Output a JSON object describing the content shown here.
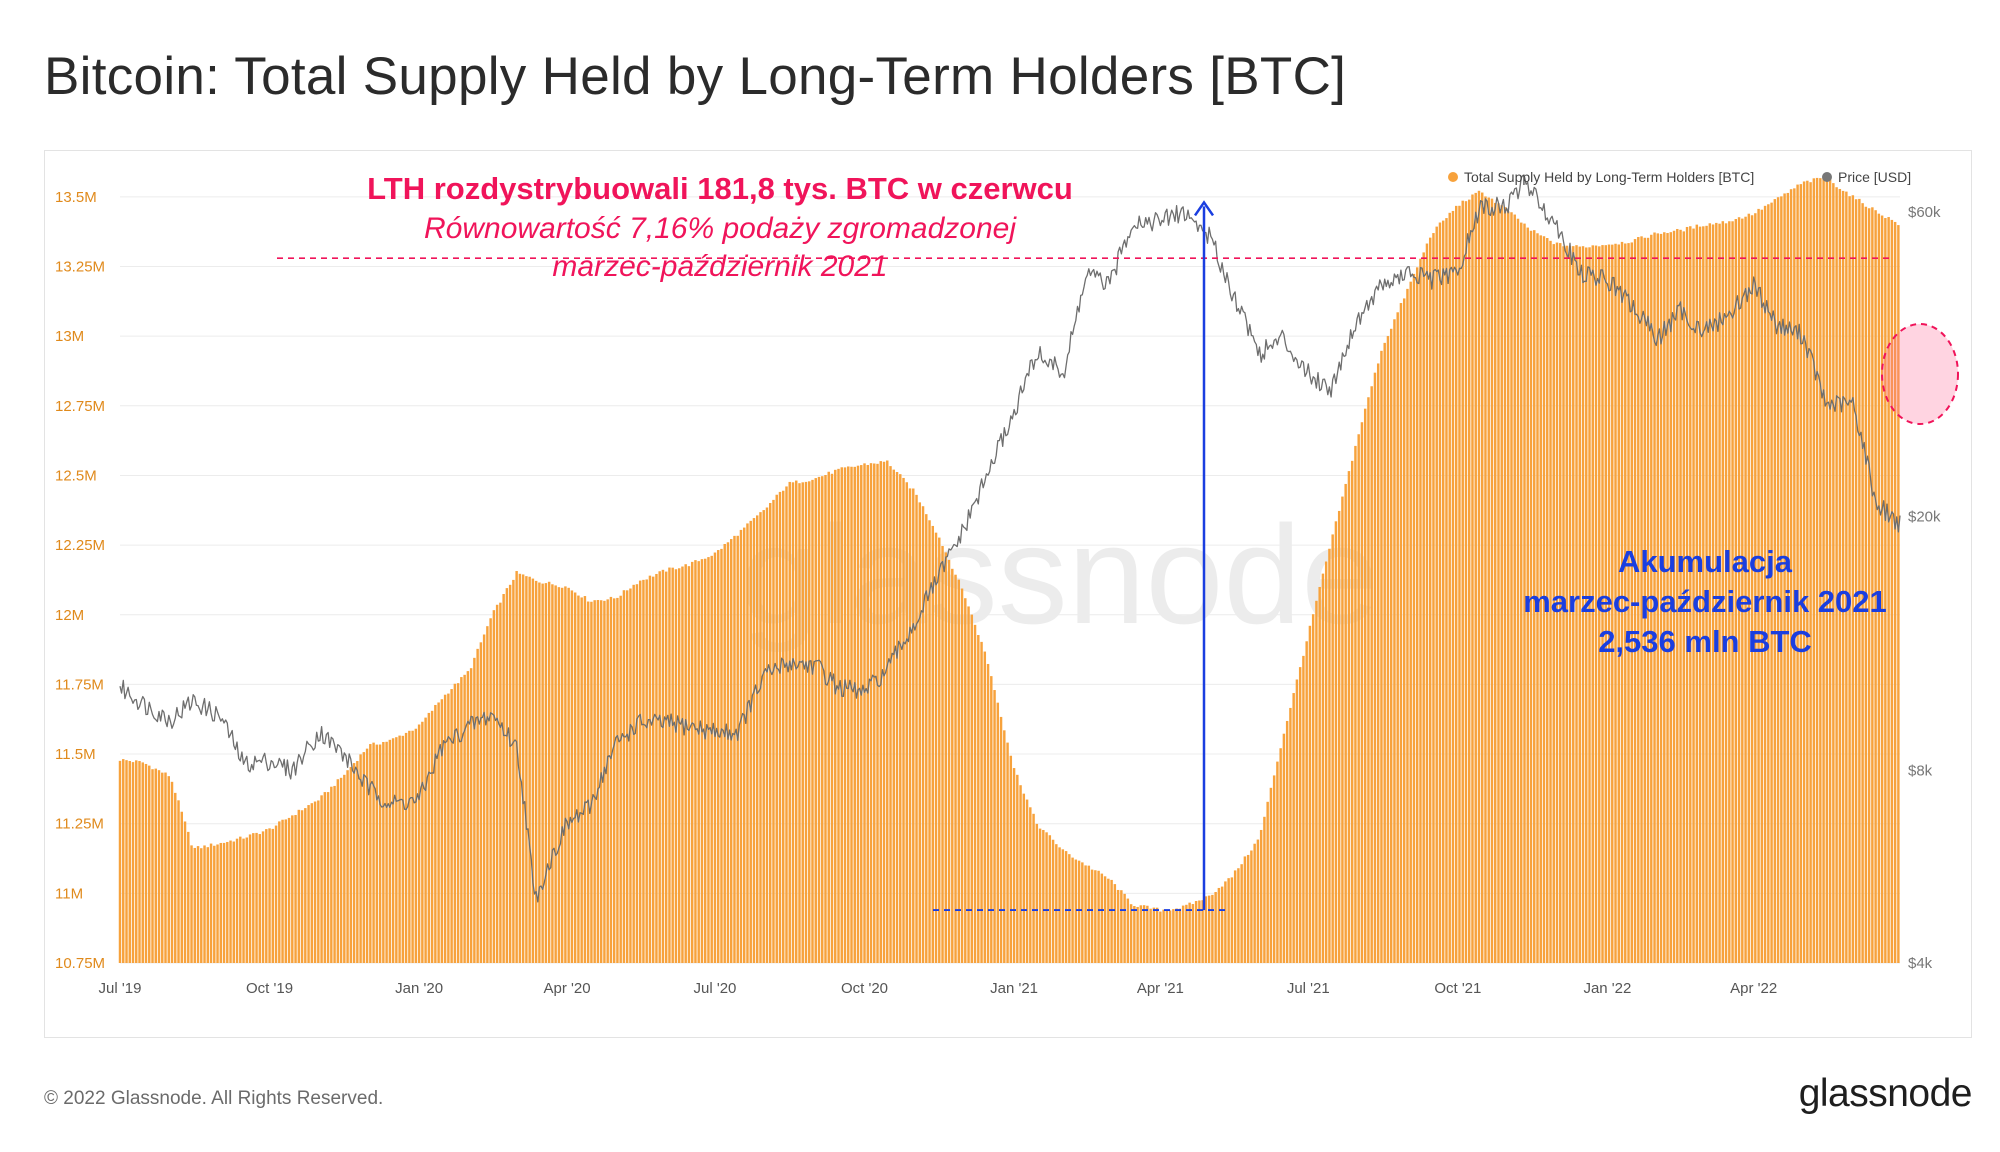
{
  "page": {
    "title": "Bitcoin: Total Supply Held by Long-Term Holders [BTC]",
    "footer": "© 2022 Glassnode. All Rights Reserved.",
    "brand": "glassnode",
    "watermark": "glassnode"
  },
  "colors": {
    "supply": "#f7a23c",
    "price": "#6e6e6e",
    "annotation_pink": "#f0145a",
    "annotation_blue": "#1a3ee0",
    "axis_text_left": "#e08a1c",
    "axis_text_right": "#777777"
  },
  "annotations": {
    "distribution_headline": "LTH rozdystrybuowali 181,8 tys. BTC w czerwcu",
    "distribution_sub1": "Równowartość 7,16% podaży zgromadzonej",
    "distribution_sub2": "marzec-październik 2021",
    "accumulation_line1": "Akumulacja",
    "accumulation_line2": "marzec-październik 2021",
    "accumulation_line3": "2,536 mln BTC"
  },
  "chart_data": {
    "type": "bar",
    "title": "Bitcoin: Total Supply Held by Long-Term Holders [BTC]",
    "legend_position": "top-right",
    "legend": [
      {
        "name": "Total Supply Held by Long-Term Holders [BTC]",
        "color": "#f7a23c"
      },
      {
        "name": "Price [USD]",
        "color": "#777777"
      }
    ],
    "x_range": [
      "2019-07-01",
      "2022-06-30"
    ],
    "x_ticks": [
      "Jul '19",
      "Oct '19",
      "Jan '20",
      "Apr '20",
      "Jul '20",
      "Oct '20",
      "Jan '21",
      "Apr '21",
      "Jul '21",
      "Oct '21",
      "Jan '22",
      "Apr '22"
    ],
    "y_left": {
      "ylim": [
        10750000,
        13600000
      ],
      "tick_values": [
        10750000,
        11000000,
        11250000,
        11500000,
        11750000,
        12000000,
        12250000,
        12500000,
        12750000,
        13000000,
        13250000,
        13500000
      ],
      "tick_labels": [
        "10.75M",
        "11M",
        "11.25M",
        "11.5M",
        "11.75M",
        "12M",
        "12.25M",
        "12.5M",
        "12.75M",
        "13M",
        "13.25M",
        "13.5M"
      ]
    },
    "y_right": {
      "scale": "log",
      "ylim": [
        4000,
        70000
      ],
      "tick_values": [
        4000,
        8000,
        20000,
        60000
      ],
      "tick_labels": [
        "$4k",
        "$8k",
        "$20k",
        "$60k"
      ]
    },
    "reference_level": 13280000,
    "accumulation_from": 10940000,
    "accumulation_to": 13480000,
    "series": [
      {
        "name": "Total Supply Held by Long-Term Holders [BTC]",
        "kind": "bar",
        "x": [
          "2019-07-01",
          "2019-07-15",
          "2019-08-01",
          "2019-08-15",
          "2019-09-01",
          "2019-09-15",
          "2019-10-01",
          "2019-10-15",
          "2019-11-01",
          "2019-11-15",
          "2019-12-01",
          "2019-12-15",
          "2020-01-01",
          "2020-01-15",
          "2020-02-01",
          "2020-02-15",
          "2020-03-01",
          "2020-03-15",
          "2020-04-01",
          "2020-04-15",
          "2020-05-01",
          "2020-05-15",
          "2020-06-01",
          "2020-06-15",
          "2020-07-01",
          "2020-07-15",
          "2020-08-01",
          "2020-08-15",
          "2020-09-01",
          "2020-09-15",
          "2020-10-01",
          "2020-10-15",
          "2020-11-01",
          "2020-11-15",
          "2020-12-01",
          "2020-12-15",
          "2021-01-01",
          "2021-01-15",
          "2021-02-01",
          "2021-02-15",
          "2021-03-01",
          "2021-03-15",
          "2021-04-01",
          "2021-04-15",
          "2021-05-01",
          "2021-05-15",
          "2021-06-01",
          "2021-06-15",
          "2021-07-01",
          "2021-07-15",
          "2021-08-01",
          "2021-08-15",
          "2021-09-01",
          "2021-09-15",
          "2021-10-01",
          "2021-10-15",
          "2021-11-01",
          "2021-11-15",
          "2021-12-01",
          "2021-12-15",
          "2022-01-01",
          "2022-01-15",
          "2022-02-01",
          "2022-02-15",
          "2022-03-01",
          "2022-03-15",
          "2022-04-01",
          "2022-04-15",
          "2022-05-01",
          "2022-05-15",
          "2022-06-01",
          "2022-06-15",
          "2022-06-30"
        ],
        "values": [
          11480000,
          11470000,
          11420000,
          11160000,
          11180000,
          11200000,
          11230000,
          11280000,
          11340000,
          11420000,
          11530000,
          11550000,
          11600000,
          11700000,
          11800000,
          12000000,
          12150000,
          12120000,
          12100000,
          12050000,
          12060000,
          12120000,
          12160000,
          12180000,
          12220000,
          12290000,
          12380000,
          12470000,
          12490000,
          12520000,
          12540000,
          12550000,
          12440000,
          12290000,
          12080000,
          11850000,
          11450000,
          11250000,
          11150000,
          11100000,
          11050000,
          10960000,
          10940000,
          10950000,
          10990000,
          11060000,
          11200000,
          11550000,
          11930000,
          12260000,
          12650000,
          12950000,
          13180000,
          13370000,
          13470000,
          13520000,
          13450000,
          13380000,
          13330000,
          13320000,
          13330000,
          13340000,
          13370000,
          13380000,
          13400000,
          13410000,
          13440000,
          13490000,
          13550000,
          13570000,
          13500000,
          13450000,
          13400000
        ]
      },
      {
        "name": "Price [USD]",
        "kind": "line",
        "axis": "right",
        "x": [
          "2019-07-01",
          "2019-07-15",
          "2019-08-01",
          "2019-08-15",
          "2019-09-01",
          "2019-09-15",
          "2019-10-01",
          "2019-10-15",
          "2019-11-01",
          "2019-11-15",
          "2019-12-01",
          "2019-12-15",
          "2020-01-01",
          "2020-01-15",
          "2020-02-01",
          "2020-02-15",
          "2020-03-01",
          "2020-03-12",
          "2020-04-01",
          "2020-04-15",
          "2020-05-01",
          "2020-05-15",
          "2020-06-01",
          "2020-06-15",
          "2020-07-01",
          "2020-07-15",
          "2020-08-01",
          "2020-08-15",
          "2020-09-01",
          "2020-09-15",
          "2020-10-01",
          "2020-10-15",
          "2020-11-01",
          "2020-11-15",
          "2020-12-01",
          "2020-12-15",
          "2021-01-01",
          "2021-01-15",
          "2021-02-01",
          "2021-02-15",
          "2021-03-01",
          "2021-03-15",
          "2021-04-01",
          "2021-04-15",
          "2021-05-01",
          "2021-05-15",
          "2021-06-01",
          "2021-06-15",
          "2021-07-01",
          "2021-07-15",
          "2021-08-01",
          "2021-08-15",
          "2021-09-01",
          "2021-09-15",
          "2021-10-01",
          "2021-10-15",
          "2021-11-01",
          "2021-11-10",
          "2021-12-01",
          "2021-12-15",
          "2022-01-01",
          "2022-01-15",
          "2022-02-01",
          "2022-02-15",
          "2022-03-01",
          "2022-03-15",
          "2022-04-01",
          "2022-04-15",
          "2022-05-01",
          "2022-05-15",
          "2022-06-01",
          "2022-06-15",
          "2022-06-30"
        ],
        "values": [
          10800,
          10200,
          9600,
          10300,
          9700,
          8200,
          8300,
          8000,
          9200,
          8500,
          7500,
          7100,
          7200,
          8700,
          9400,
          9800,
          8700,
          5000,
          6600,
          7000,
          8800,
          9500,
          9500,
          9400,
          9200,
          9200,
          11300,
          11800,
          11700,
          10800,
          10600,
          11500,
          13600,
          16000,
          19000,
          23000,
          29000,
          36000,
          33500,
          48000,
          46000,
          58000,
          58000,
          60000,
          55000,
          45000,
          36000,
          38000,
          33500,
          31700,
          41000,
          46000,
          48000,
          47000,
          48000,
          61000,
          61300,
          67000,
          57000,
          48000,
          47000,
          43000,
          38000,
          42000,
          39000,
          41000,
          46000,
          40000,
          38500,
          30000,
          30000,
          21000,
          19500
        ]
      }
    ]
  }
}
